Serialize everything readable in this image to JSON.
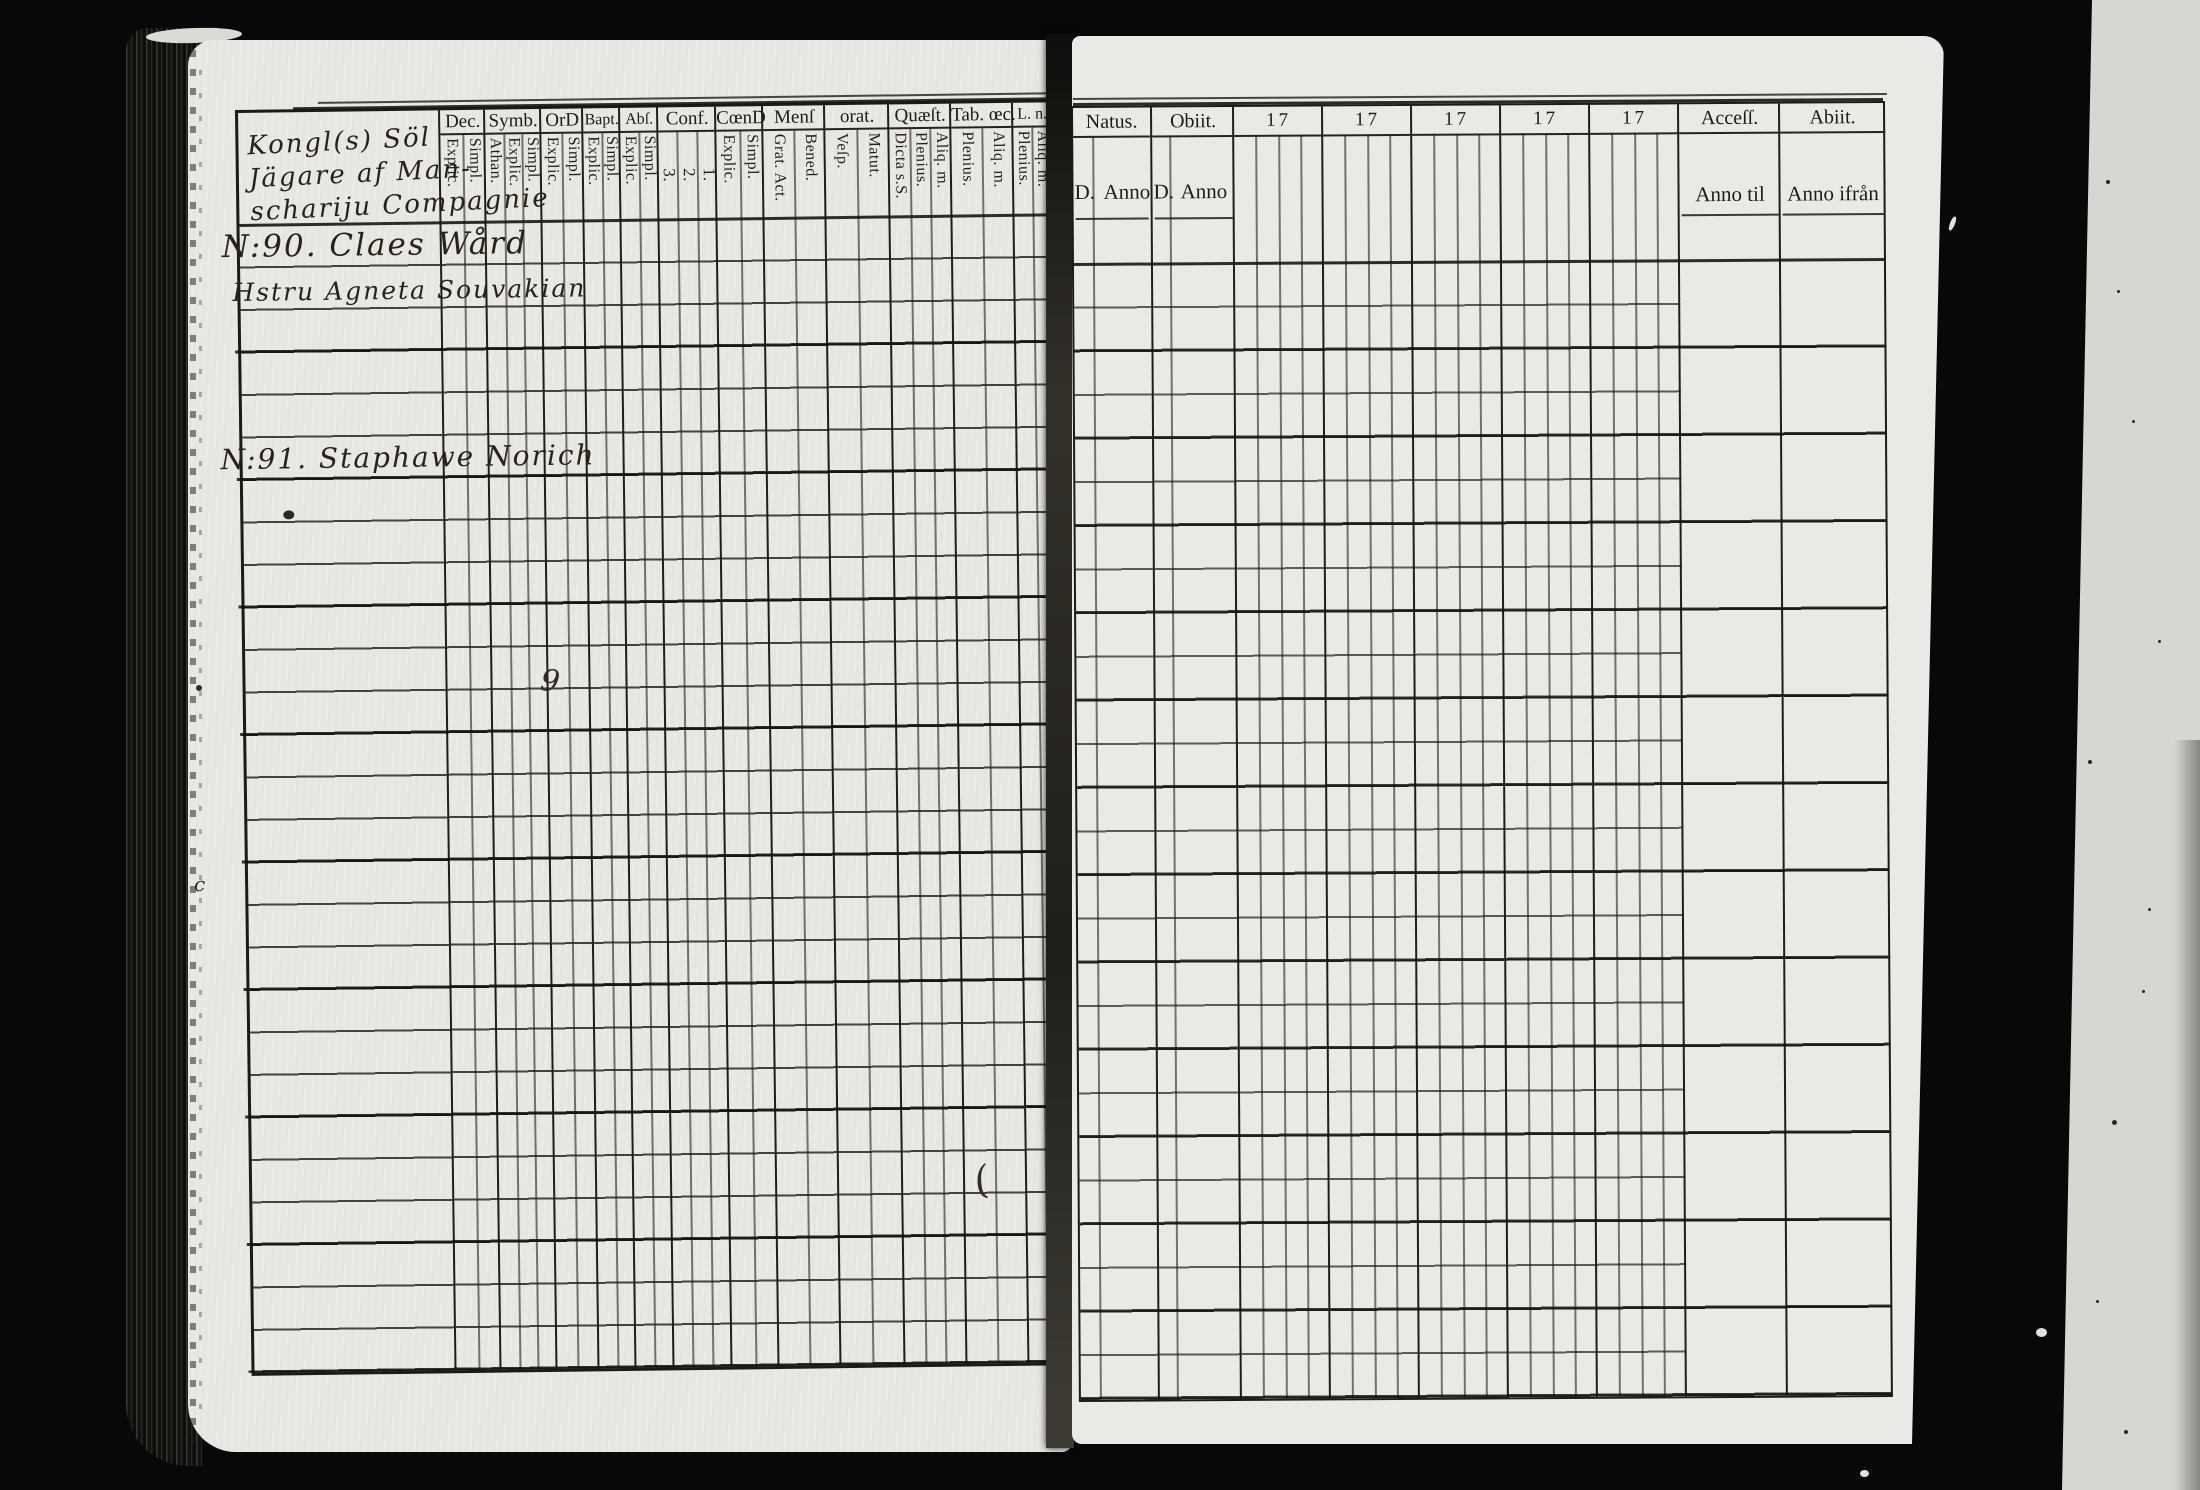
{
  "colors": {
    "background": "#080808",
    "paper": "#e9e8e4",
    "ink": "#221f19",
    "scanner_strip": "#d8d6d1"
  },
  "left_page": {
    "heading_lines": [
      "Kongl(s) Söl",
      "Jägare af Man-",
      "schariju Compagnie"
    ],
    "columns": [
      {
        "label": "Dec.",
        "subs": [
          "Explic.",
          "Simpl."
        ]
      },
      {
        "label": "Symb.",
        "subs": [
          "Athan.",
          "Explic.",
          "Simpl."
        ]
      },
      {
        "label": "OrD",
        "subs": [
          "Explic.",
          "Simpl."
        ]
      },
      {
        "label": "Bapt.",
        "subs": [
          "Explic.",
          "Simpl."
        ]
      },
      {
        "label": "Abſ.",
        "subs": [
          "Explic.",
          "Simpl."
        ]
      },
      {
        "label": "Conf.",
        "subs": [
          "3.",
          "2.",
          "1."
        ]
      },
      {
        "label": "CœnD",
        "subs": [
          "Explic.",
          "Simpl."
        ]
      },
      {
        "label": "Menſ",
        "subs": [
          "Grat. Act.",
          "Bened."
        ]
      },
      {
        "label": "orat.",
        "subs": [
          "Veſp.",
          "Matut."
        ]
      },
      {
        "label": "Quæſt.",
        "subs": [
          "Dicta s.S.",
          "Plenius.",
          "Aliq. m."
        ]
      },
      {
        "label": "Tab. œc.",
        "subs": [
          "Plenius.",
          "Aliq. m."
        ]
      },
      {
        "label": "L. n.",
        "subs": [
          "Plenius.",
          "Aliq. m."
        ]
      }
    ],
    "entries": [
      {
        "text": "N:90. Claes Wård"
      },
      {
        "text": "Hstru Agneta Souvakian"
      },
      {
        "text": "N:91. Staphawe Norich"
      }
    ],
    "ink_marks": [
      {
        "text": "9"
      },
      {
        "text": "c"
      },
      {
        "text": "("
      }
    ],
    "row_count": 27
  },
  "right_page": {
    "columns": [
      {
        "label": "Natus.",
        "subs": [
          "D.",
          "Anno"
        ]
      },
      {
        "label": "Obiit.",
        "subs": [
          "D.",
          "Anno"
        ]
      },
      {
        "label": "17",
        "subs": []
      },
      {
        "label": "17",
        "subs": []
      },
      {
        "label": "17",
        "subs": []
      },
      {
        "label": "17",
        "subs": []
      },
      {
        "label": "17",
        "subs": []
      },
      {
        "label": "Acceſſ.",
        "subs": [
          "Anno til"
        ]
      },
      {
        "label": "Abiit.",
        "subs": [
          "Anno ifrån"
        ]
      }
    ],
    "row_count": 26
  }
}
